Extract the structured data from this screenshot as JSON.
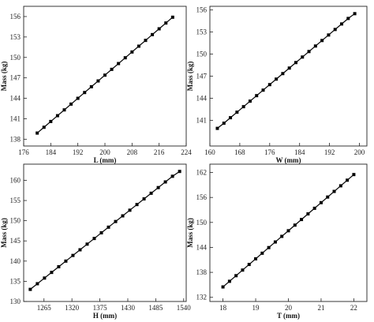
{
  "chart_data": [
    {
      "type": "line",
      "xlabel": "L (mm)",
      "ylabel": "Mass (kg)",
      "xlim": [
        176,
        224
      ],
      "ylim": [
        137,
        157.5
      ],
      "xticks": [
        176,
        184,
        192,
        200,
        208,
        216,
        224
      ],
      "yticks": [
        138,
        141,
        144,
        147,
        150,
        153,
        156
      ],
      "series": [
        {
          "x": [
            180,
            182,
            184,
            186,
            188,
            190,
            192,
            194,
            196,
            198,
            200,
            202,
            204,
            206,
            208,
            210,
            212,
            214,
            216,
            218,
            220
          ],
          "values": [
            138.9,
            139.75,
            140.6,
            141.45,
            142.3,
            143.15,
            144.0,
            144.85,
            145.7,
            146.55,
            147.4,
            148.25,
            149.1,
            149.95,
            150.8,
            151.65,
            152.5,
            153.35,
            154.2,
            155.05,
            155.9
          ]
        }
      ]
    },
    {
      "type": "line",
      "xlabel": "W (mm)",
      "ylabel": "Mass (kg)",
      "xlim": [
        160,
        202
      ],
      "ylim": [
        137.5,
        156.5
      ],
      "xticks": [
        160,
        168,
        176,
        184,
        192,
        200
      ],
      "yticks": [
        141,
        144,
        147,
        150,
        153,
        156
      ],
      "series": [
        {
          "x": [
            162,
            163.75,
            165.5,
            167.25,
            169,
            170.75,
            172.5,
            174.25,
            176,
            177.75,
            179.5,
            181.25,
            183,
            184.75,
            186.5,
            188.25,
            190,
            191.75,
            193.5,
            195.25,
            197,
            198.75
          ],
          "values": [
            139.9,
            140.6,
            141.35,
            142.1,
            142.85,
            143.6,
            144.35,
            145.1,
            145.85,
            146.6,
            147.35,
            148.1,
            148.85,
            149.6,
            150.35,
            151.1,
            151.85,
            152.6,
            153.35,
            154.1,
            154.85,
            155.5
          ]
        }
      ]
    },
    {
      "type": "line",
      "xlabel": "H (mm)",
      "ylabel": "Mass (kg)",
      "xlim": [
        1225,
        1545
      ],
      "ylim": [
        130,
        164
      ],
      "xticks": [
        1265,
        1320,
        1375,
        1430,
        1485,
        1540
      ],
      "yticks": [
        130,
        135,
        140,
        145,
        150,
        155,
        160
      ],
      "series": [
        {
          "x": [
            1238,
            1252,
            1266,
            1280,
            1294,
            1308,
            1322,
            1336,
            1350,
            1364,
            1378,
            1392,
            1406,
            1420,
            1434,
            1448,
            1462,
            1476,
            1490,
            1504,
            1518,
            1532
          ],
          "values": [
            133.0,
            134.4,
            135.8,
            137.2,
            138.6,
            140.0,
            141.4,
            142.8,
            144.2,
            145.6,
            147.0,
            148.4,
            149.8,
            151.2,
            152.6,
            154.0,
            155.4,
            156.8,
            158.2,
            159.6,
            161.0,
            162.2
          ]
        }
      ]
    },
    {
      "type": "line",
      "xlabel": "T (mm)",
      "ylabel": "Mass (kg)",
      "xlim": [
        17.6,
        22.4
      ],
      "ylim": [
        131,
        164
      ],
      "xticks": [
        18,
        19,
        20,
        21,
        22
      ],
      "yticks": [
        132,
        138,
        144,
        150,
        156,
        162
      ],
      "series": [
        {
          "x": [
            18,
            18.2,
            18.4,
            18.6,
            18.8,
            19,
            19.2,
            19.4,
            19.6,
            19.8,
            20,
            20.2,
            20.4,
            20.6,
            20.8,
            21,
            21.2,
            21.4,
            21.6,
            21.8,
            22
          ],
          "values": [
            134.5,
            135.85,
            137.2,
            138.55,
            139.9,
            141.25,
            142.6,
            143.95,
            145.3,
            146.65,
            148.0,
            149.35,
            150.7,
            152.05,
            153.4,
            154.75,
            156.1,
            157.45,
            158.8,
            160.15,
            161.5
          ]
        }
      ]
    }
  ]
}
